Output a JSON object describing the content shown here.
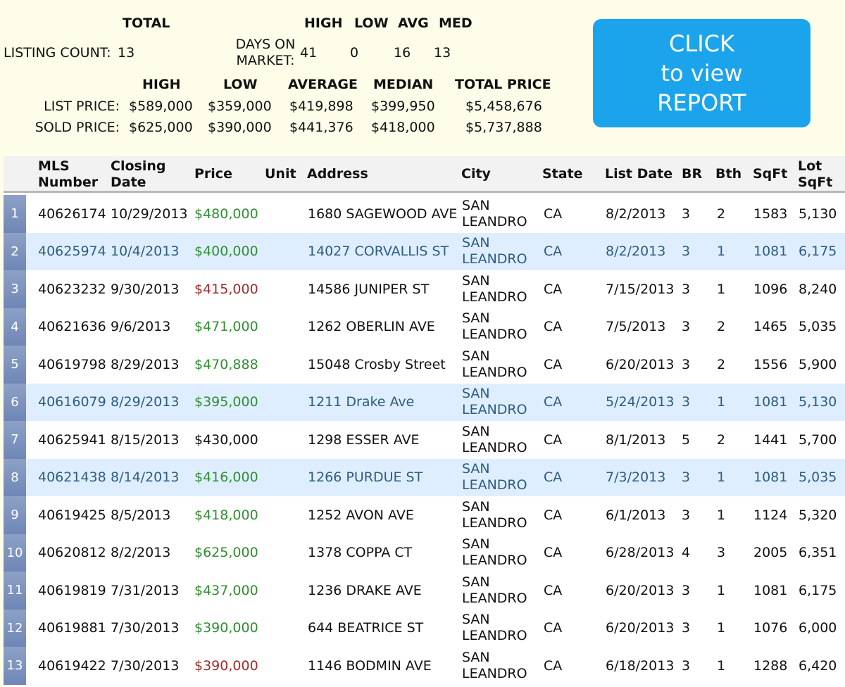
{
  "summary": {
    "total_header": "TOTAL",
    "listing_count_label": "LISTING COUNT:",
    "listing_count_value": "13",
    "dom_headers": [
      "HIGH",
      "LOW",
      "AVG",
      "MED"
    ],
    "dom_label_line1": "DAYS ON",
    "dom_label_line2": "MARKET:",
    "dom_values": [
      "41",
      "0",
      "16",
      "13"
    ],
    "price_headers": [
      "HIGH",
      "LOW",
      "AVERAGE",
      "MEDIAN",
      "TOTAL PRICE"
    ],
    "list_price_label": "LIST PRICE:",
    "list_price_values": [
      "$589,000",
      "$359,000",
      "$419,898",
      "$399,950",
      "$5,458,676"
    ],
    "sold_price_label": "SOLD PRICE:",
    "sold_price_values": [
      "$625,000",
      "$390,000",
      "$441,376",
      "$418,000",
      "$5,737,888"
    ]
  },
  "cta": {
    "line1": "CLICK",
    "line2": "to view",
    "line3": "REPORT",
    "color": "#1ba4ec"
  },
  "table": {
    "columns": {
      "mls_1": "MLS",
      "mls_2": "Number",
      "closing_1": "Closing",
      "closing_2": "Date",
      "price": "Price",
      "unit": "Unit",
      "address": "Address",
      "city": "City",
      "state": "State",
      "list_date": "List Date",
      "br": "BR",
      "bth": "Bth",
      "sqft": "SqFt",
      "lot_1": "Lot",
      "lot_2": "SqFt"
    },
    "rows": [
      {
        "n": "1",
        "mls": "40626174",
        "closing": "10/29/2013",
        "price": "$480,000",
        "unit": "",
        "address": "1680 SAGEWOOD AVE",
        "city1": "SAN",
        "city2": "LEANDRO",
        "state": "CA",
        "list_date": "8/2/2013",
        "br": "3",
        "bth": "2",
        "sqft": "1583",
        "lot": "5,130",
        "trend": "up",
        "hl": false
      },
      {
        "n": "2",
        "mls": "40625974",
        "closing": "10/4/2013",
        "price": "$400,000",
        "unit": "",
        "address": "14027 CORVALLIS ST",
        "city1": "SAN",
        "city2": "LEANDRO",
        "state": "CA",
        "list_date": "8/2/2013",
        "br": "3",
        "bth": "1",
        "sqft": "1081",
        "lot": "6,175",
        "trend": "up",
        "hl": true
      },
      {
        "n": "3",
        "mls": "40623232",
        "closing": "9/30/2013",
        "price": "$415,000",
        "unit": "",
        "address": "14586 JUNIPER ST",
        "city1": "SAN",
        "city2": "LEANDRO",
        "state": "CA",
        "list_date": "7/15/2013",
        "br": "3",
        "bth": "1",
        "sqft": "1096",
        "lot": "8,240",
        "trend": "down",
        "hl": false
      },
      {
        "n": "4",
        "mls": "40621636",
        "closing": "9/6/2013",
        "price": "$471,000",
        "unit": "",
        "address": "1262 OBERLIN AVE",
        "city1": "SAN",
        "city2": "LEANDRO",
        "state": "CA",
        "list_date": "7/5/2013",
        "br": "3",
        "bth": "2",
        "sqft": "1465",
        "lot": "5,035",
        "trend": "up",
        "hl": false
      },
      {
        "n": "5",
        "mls": "40619798",
        "closing": "8/29/2013",
        "price": "$470,888",
        "unit": "",
        "address": "15048 Crosby Street",
        "city1": "SAN",
        "city2": "LEANDRO",
        "state": "CA",
        "list_date": "6/20/2013",
        "br": "3",
        "bth": "2",
        "sqft": "1556",
        "lot": "5,900",
        "trend": "up",
        "hl": false
      },
      {
        "n": "6",
        "mls": "40616079",
        "closing": "8/29/2013",
        "price": "$395,000",
        "unit": "",
        "address": "1211 Drake Ave",
        "city1": "SAN",
        "city2": "LEANDRO",
        "state": "CA",
        "list_date": "5/24/2013",
        "br": "3",
        "bth": "1",
        "sqft": "1081",
        "lot": "5,130",
        "trend": "up",
        "hl": true
      },
      {
        "n": "7",
        "mls": "40625941",
        "closing": "8/15/2013",
        "price": "$430,000",
        "unit": "",
        "address": "1298 ESSER AVE",
        "city1": "SAN",
        "city2": "LEANDRO",
        "state": "CA",
        "list_date": "8/1/2013",
        "br": "5",
        "bth": "2",
        "sqft": "1441",
        "lot": "5,700",
        "trend": "eq",
        "hl": false
      },
      {
        "n": "8",
        "mls": "40621438",
        "closing": "8/14/2013",
        "price": "$416,000",
        "unit": "",
        "address": "1266 PURDUE ST",
        "city1": "SAN",
        "city2": "LEANDRO",
        "state": "CA",
        "list_date": "7/3/2013",
        "br": "3",
        "bth": "1",
        "sqft": "1081",
        "lot": "5,035",
        "trend": "up",
        "hl": true
      },
      {
        "n": "9",
        "mls": "40619425",
        "closing": "8/5/2013",
        "price": "$418,000",
        "unit": "",
        "address": "1252 AVON AVE",
        "city1": "SAN",
        "city2": "LEANDRO",
        "state": "CA",
        "list_date": "6/1/2013",
        "br": "3",
        "bth": "1",
        "sqft": "1124",
        "lot": "5,320",
        "trend": "up",
        "hl": false
      },
      {
        "n": "10",
        "mls": "40620812",
        "closing": "8/2/2013",
        "price": "$625,000",
        "unit": "",
        "address": "1378 COPPA CT",
        "city1": "SAN",
        "city2": "LEANDRO",
        "state": "CA",
        "list_date": "6/28/2013",
        "br": "4",
        "bth": "3",
        "sqft": "2005",
        "lot": "6,351",
        "trend": "up",
        "hl": false
      },
      {
        "n": "11",
        "mls": "40619819",
        "closing": "7/31/2013",
        "price": "$437,000",
        "unit": "",
        "address": "1236 DRAKE AVE",
        "city1": "SAN",
        "city2": "LEANDRO",
        "state": "CA",
        "list_date": "6/20/2013",
        "br": "3",
        "bth": "1",
        "sqft": "1081",
        "lot": "6,175",
        "trend": "up",
        "hl": false
      },
      {
        "n": "12",
        "mls": "40619881",
        "closing": "7/30/2013",
        "price": "$390,000",
        "unit": "",
        "address": "644 BEATRICE ST",
        "city1": "SAN",
        "city2": "LEANDRO",
        "state": "CA",
        "list_date": "6/20/2013",
        "br": "3",
        "bth": "1",
        "sqft": "1076",
        "lot": "6,000",
        "trend": "up",
        "hl": false
      },
      {
        "n": "13",
        "mls": "40619422",
        "closing": "7/30/2013",
        "price": "$390,000",
        "unit": "",
        "address": "1146 BODMIN AVE",
        "city1": "SAN",
        "city2": "LEANDRO",
        "state": "CA",
        "list_date": "6/18/2013",
        "br": "3",
        "bth": "1",
        "sqft": "1288",
        "lot": "6,420",
        "trend": "down",
        "hl": false
      }
    ]
  }
}
